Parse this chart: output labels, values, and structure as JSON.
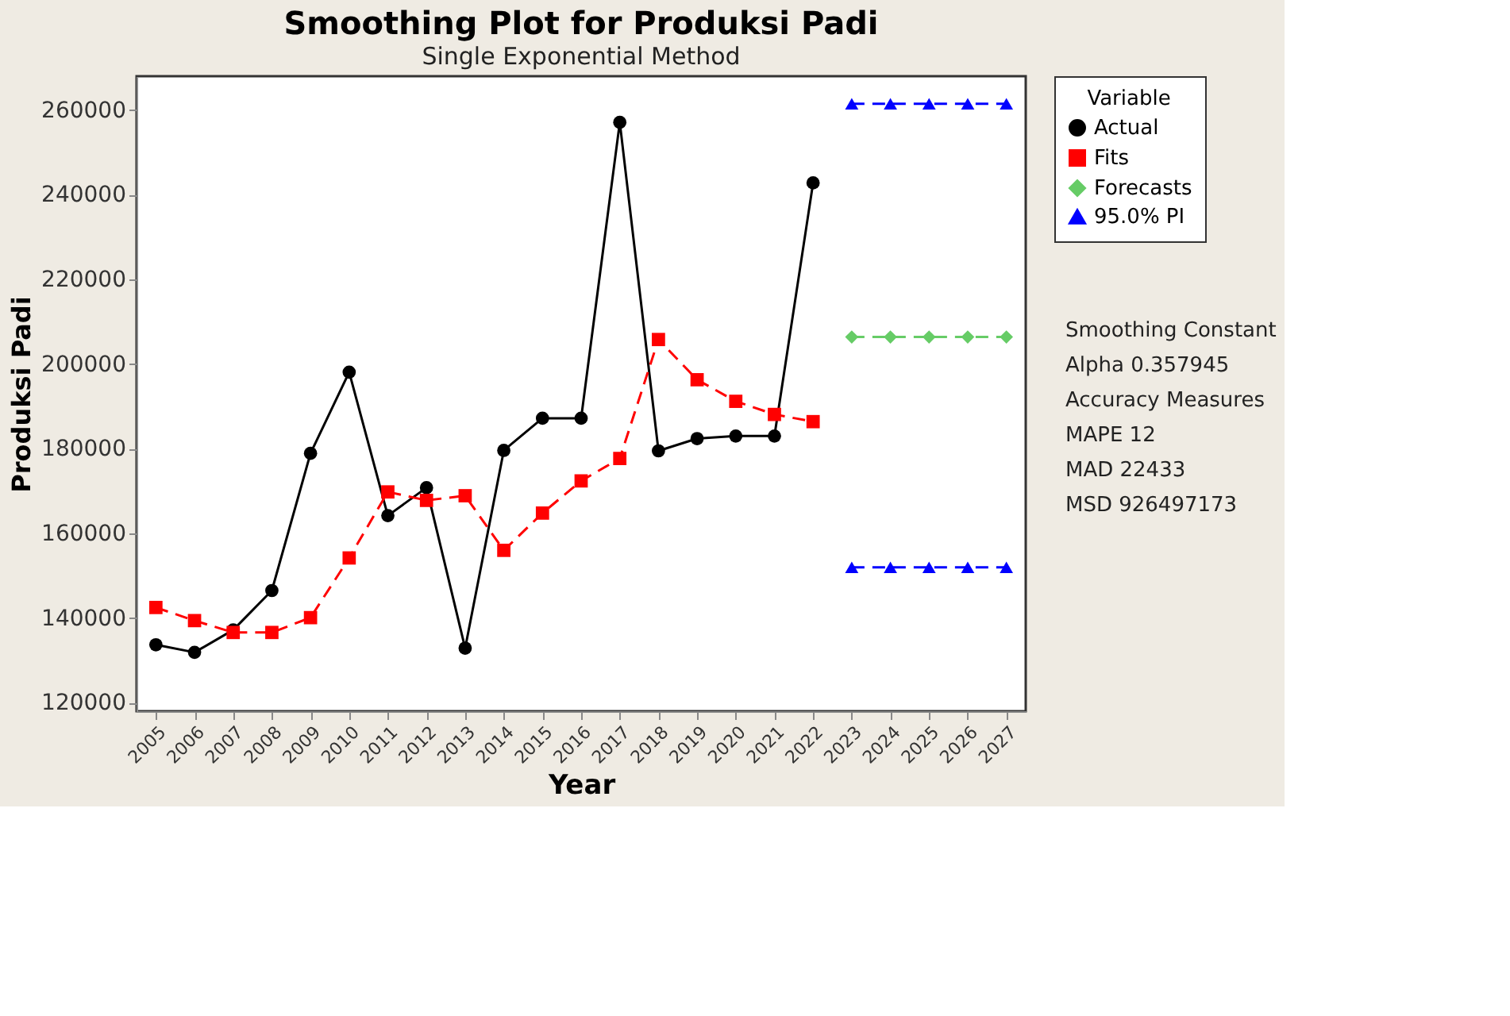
{
  "chart_data": {
    "type": "line",
    "title": "Smoothing Plot for Produksi Padi",
    "subtitle": "Single Exponential Method",
    "xlabel": "Year",
    "ylabel": "Produksi Padi",
    "legend_title": "Variable",
    "categories": [
      "2005",
      "2006",
      "2007",
      "2008",
      "2009",
      "2010",
      "2011",
      "2012",
      "2013",
      "2014",
      "2015",
      "2016",
      "2017",
      "2018",
      "2019",
      "2020",
      "2021",
      "2022",
      "2023",
      "2024",
      "2025",
      "2026",
      "2027"
    ],
    "series": [
      {
        "name": "Actual",
        "color": "#000000",
        "marker": "circle",
        "line_style": "solid",
        "values": [
          133700,
          131900,
          137200,
          146500,
          178900,
          198100,
          164200,
          170800,
          132900,
          179600,
          187200,
          187200,
          257100,
          179500,
          182400,
          183000,
          183000,
          242800,
          null,
          null,
          null,
          null,
          null
        ]
      },
      {
        "name": "Fits",
        "color": "#ff0000",
        "marker": "square",
        "line_style": "dashed",
        "values": [
          142500,
          139400,
          136600,
          136600,
          140100,
          154200,
          169800,
          167800,
          168900,
          156000,
          164800,
          172400,
          177700,
          205800,
          196300,
          191200,
          188100,
          186400,
          null,
          null,
          null,
          null,
          null
        ]
      },
      {
        "name": "Forecasts",
        "color": "#66cc66",
        "marker": "diamond",
        "line_style": "dashed",
        "values": [
          null,
          null,
          null,
          null,
          null,
          null,
          null,
          null,
          null,
          null,
          null,
          null,
          null,
          null,
          null,
          null,
          null,
          null,
          206400,
          206400,
          206400,
          206400,
          206400
        ]
      },
      {
        "name": "95.0% PI",
        "color": "#0000ff",
        "marker": "triangle",
        "line_style": "dashed",
        "values": [
          null,
          null,
          null,
          null,
          null,
          null,
          null,
          null,
          null,
          null,
          null,
          null,
          null,
          null,
          null,
          null,
          null,
          null,
          261500,
          261500,
          261500,
          261500,
          261500
        ]
      },
      {
        "color": "#0000ff",
        "marker": "triangle",
        "line_style": "dashed",
        "values": [
          null,
          null,
          null,
          null,
          null,
          null,
          null,
          null,
          null,
          null,
          null,
          null,
          null,
          null,
          null,
          null,
          null,
          null,
          152000,
          152000,
          152000,
          152000,
          152000
        ]
      }
    ],
    "ylim": [
      118000,
      268000
    ],
    "yticks": [
      120000,
      140000,
      160000,
      180000,
      200000,
      220000,
      240000,
      260000
    ],
    "grid": false,
    "legend": "top right",
    "annotations": [
      "Smoothing Constant",
      "Alpha 0.357945",
      "Accuracy Measures",
      "MAPE 12",
      "MAD 22433",
      "MSD 926497173"
    ]
  }
}
